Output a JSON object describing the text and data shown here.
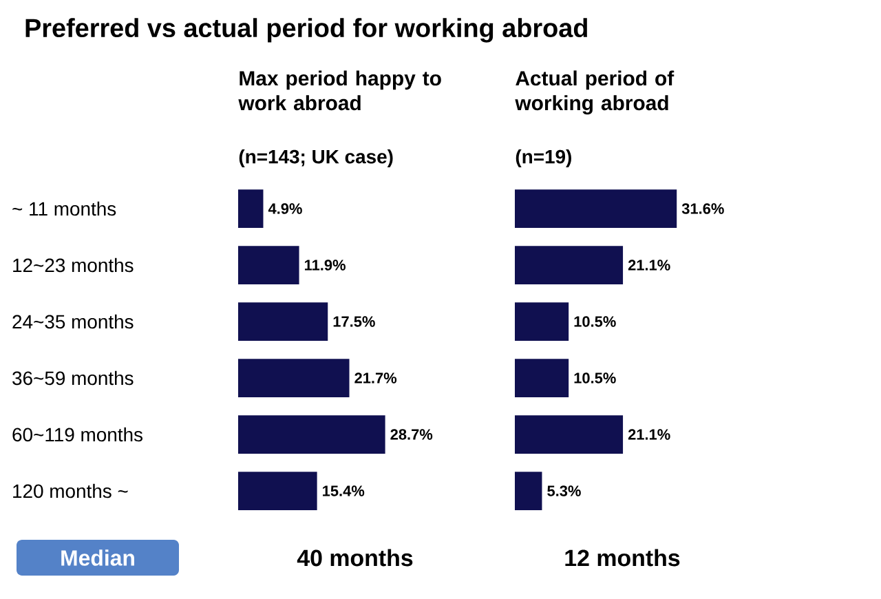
{
  "chart_data": [
    {
      "type": "bar",
      "orientation": "horizontal",
      "title": "Preferred vs actual period for working abroad",
      "subtitle": "Max period happy to work abroad",
      "categories": [
        "~ 11 months",
        "12~23 months",
        "24~35 months",
        "36~59 months",
        "60~119 months",
        "120 months ~"
      ],
      "values": [
        4.9,
        11.9,
        17.5,
        21.7,
        28.7,
        15.4
      ],
      "value_labels": [
        "4.9%",
        "11.9%",
        "17.5%",
        "21.7%",
        "28.7%",
        "15.4%"
      ],
      "color": "#101050",
      "tick_labels": "y",
      "annotations": [
        "(n=143; UK case)",
        "Median",
        "40 months"
      ]
    },
    {
      "type": "bar",
      "orientation": "horizontal",
      "subtitle": "Actual period of working abroad",
      "values": [
        31.6,
        21.1,
        10.5,
        10.5,
        21.1,
        5.3
      ],
      "value_labels": [
        "31.6%",
        "21.1%",
        "10.5%",
        "10.5%",
        "21.1%",
        "5.3%"
      ],
      "color": "#101050",
      "tick_labels": false,
      "annotations": [
        "(n=19)",
        "12 months"
      ]
    }
  ]
}
